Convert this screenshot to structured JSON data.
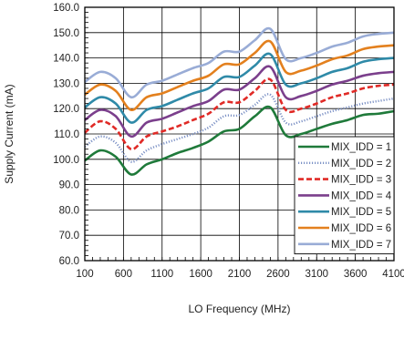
{
  "chart_data": {
    "type": "line",
    "title": "",
    "xlabel": "LO Frequency (MHz)",
    "ylabel": "Supply Current (mA)",
    "xlim": [
      100,
      4100
    ],
    "ylim": [
      60,
      160
    ],
    "x_ticks": [
      100,
      600,
      1100,
      1600,
      2100,
      2600,
      3100,
      3600,
      4100
    ],
    "y_ticks": [
      60,
      70,
      80,
      90,
      100,
      110,
      120,
      130,
      140,
      150,
      160
    ],
    "y_tick_labels": [
      "60.0",
      "70.0",
      "80.0",
      "90.0",
      "100.0",
      "110.0",
      "120.0",
      "130.0",
      "140.0",
      "150.0",
      "160.0"
    ],
    "x_tick_labels": [
      "100",
      "600",
      "1100",
      "1600",
      "2100",
      "2600",
      "3100",
      "3600",
      "4100"
    ],
    "grid": true,
    "legend_position": "bottom-right",
    "x": [
      100,
      300,
      500,
      700,
      900,
      1100,
      1300,
      1500,
      1700,
      1900,
      2100,
      2300,
      2500,
      2700,
      2900,
      3100,
      3300,
      3500,
      3700,
      3900,
      4100
    ],
    "series": [
      {
        "name": "MIX_IDD = 1",
        "color": "#1f7a3a",
        "dash": "solid",
        "width": 2.6,
        "values": [
          99.5,
          103.5,
          101,
          94,
          98,
          100,
          102.5,
          104.5,
          107,
          111,
          112,
          117,
          120.5,
          109.5,
          110,
          112,
          114,
          115.5,
          117.5,
          118,
          119
        ]
      },
      {
        "name": "MIX_IDD = 2",
        "color": "#7e93c6",
        "dash": "dotted",
        "width": 2.4,
        "values": [
          105,
          109,
          106.5,
          99,
          103.5,
          106,
          108,
          110,
          112.5,
          117,
          117.5,
          121.5,
          125.5,
          114.5,
          115,
          117,
          119,
          120.5,
          122,
          123,
          124
        ]
      },
      {
        "name": "MIX_IDD = 3",
        "color": "#e02a26",
        "dash": "dashed",
        "width": 2.6,
        "values": [
          110.5,
          115,
          112,
          104,
          109,
          111,
          113,
          115.5,
          118,
          122.5,
          122.5,
          127,
          131.5,
          119.5,
          120,
          122,
          124.5,
          126,
          128,
          129,
          129.5
        ]
      },
      {
        "name": "MIX_IDD = 4",
        "color": "#7b3f8c",
        "dash": "solid",
        "width": 2.6,
        "values": [
          115.5,
          119.5,
          117,
          109,
          114.5,
          116,
          118.5,
          121,
          123,
          127.5,
          127.5,
          132,
          136.5,
          124.5,
          125,
          127,
          129.5,
          131,
          133,
          134,
          134.5
        ]
      },
      {
        "name": "MIX_IDD = 5",
        "color": "#2f8aa8",
        "dash": "solid",
        "width": 2.6,
        "values": [
          120.5,
          124.5,
          122,
          114.5,
          119.5,
          121,
          123.5,
          126,
          128,
          132.5,
          132.5,
          137,
          141.5,
          129.5,
          130,
          132,
          134.5,
          136,
          138.5,
          139.5,
          140
        ]
      },
      {
        "name": "MIX_IDD = 6",
        "color": "#e3801e",
        "dash": "solid",
        "width": 2.6,
        "values": [
          125.5,
          129.5,
          127,
          119.5,
          124.5,
          126,
          128.5,
          131,
          133,
          137.5,
          137.5,
          142,
          146.5,
          134.5,
          135,
          137,
          139.5,
          141,
          143.5,
          144.5,
          145
        ]
      },
      {
        "name": "MIX_IDD = 7",
        "color": "#99acd6",
        "dash": "solid",
        "width": 2.6,
        "values": [
          130.5,
          134.5,
          132,
          124.5,
          129.5,
          131,
          133.5,
          136,
          138,
          142.5,
          142.5,
          147,
          151.5,
          139.5,
          140,
          142,
          144.5,
          146,
          148.5,
          149.5,
          150
        ]
      }
    ]
  }
}
